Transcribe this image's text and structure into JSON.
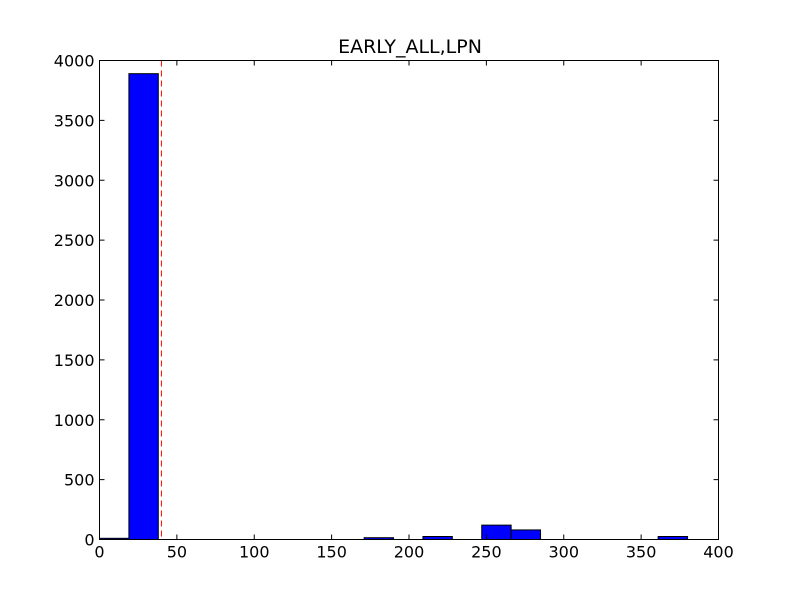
{
  "chart_data": {
    "type": "bar",
    "title": "EARLY_ALL,LPN",
    "xlabel": "",
    "ylabel": "",
    "xlim": [
      0,
      400
    ],
    "ylim": [
      0,
      4000
    ],
    "xticks": [
      0,
      50,
      100,
      150,
      200,
      250,
      300,
      350,
      400
    ],
    "yticks": [
      0,
      500,
      1000,
      1500,
      2000,
      2500,
      3000,
      3500,
      4000
    ],
    "grid": false,
    "bar_color": "#0000ff",
    "bin_width": 19,
    "bins": [
      {
        "x0": 0,
        "x1": 19,
        "value": 10
      },
      {
        "x0": 19,
        "x1": 38,
        "value": 3890
      },
      {
        "x0": 171,
        "x1": 190,
        "value": 15
      },
      {
        "x0": 209,
        "x1": 228,
        "value": 25
      },
      {
        "x0": 247,
        "x1": 266,
        "value": 120
      },
      {
        "x0": 266,
        "x1": 285,
        "value": 80
      },
      {
        "x0": 361,
        "x1": 380,
        "value": 25
      }
    ],
    "reference_line": {
      "x": 40,
      "color": "#ff0000",
      "style": "dashed"
    }
  }
}
